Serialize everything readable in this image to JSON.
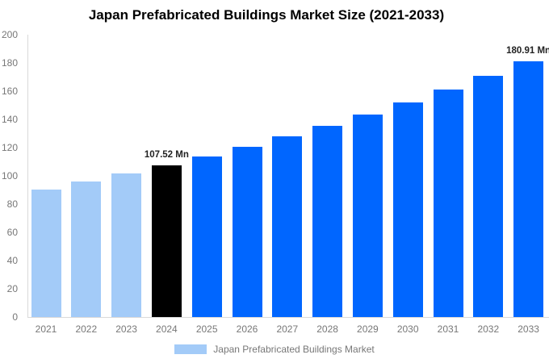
{
  "colors": {
    "background": "#FFFFFF",
    "light_blue": "#A3CBF8",
    "highlight_black": "#000000",
    "blue": "#0066FF",
    "axis_text": "#777777",
    "axis_line": "#D9D9D9",
    "annotation_text": "#222222",
    "title_text": "#000000"
  },
  "chart_data": {
    "type": "bar",
    "title": "Japan Prefabricated Buildings Market Size (2021-2033)",
    "categories": [
      "2021",
      "2022",
      "2023",
      "2024",
      "2025",
      "2026",
      "2027",
      "2028",
      "2029",
      "2030",
      "2031",
      "2032",
      "2033"
    ],
    "values": [
      90.4,
      95.78,
      101.48,
      107.52,
      113.92,
      120.7,
      127.88,
      135.49,
      143.55,
      152.09,
      161.14,
      170.73,
      180.91
    ],
    "bar_colors": [
      "#A3CBF8",
      "#A3CBF8",
      "#A3CBF8",
      "#000000",
      "#0066FF",
      "#0066FF",
      "#0066FF",
      "#0066FF",
      "#0066FF",
      "#0066FF",
      "#0066FF",
      "#0066FF",
      "#0066FF"
    ],
    "xlabel": "",
    "ylabel": "",
    "ylim": [
      0,
      200
    ],
    "yticks": [
      0,
      20,
      40,
      60,
      80,
      100,
      120,
      140,
      160,
      180,
      200
    ],
    "grid": false,
    "annotations": [
      {
        "category": "2024",
        "index": 3,
        "text": "107.52 Mn"
      },
      {
        "category": "2033",
        "index": 12,
        "text": "180.91 Mn"
      }
    ],
    "legend": {
      "label": "Japan Prefabricated Buildings Market",
      "swatch_color": "#A3CBF8",
      "position": "bottom"
    }
  }
}
